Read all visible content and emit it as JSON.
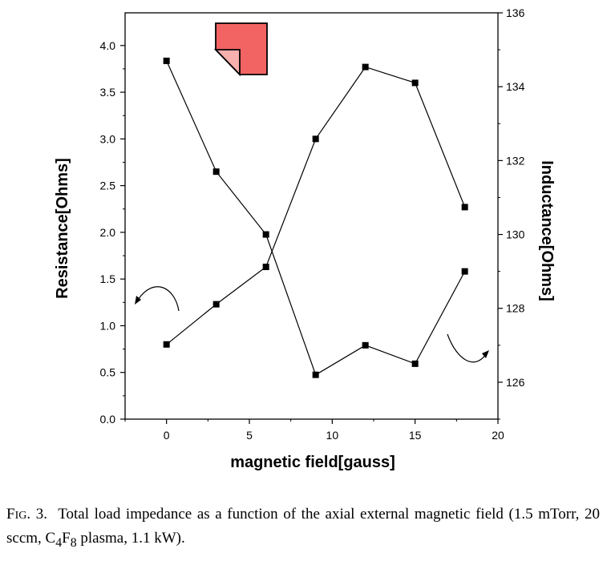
{
  "chart_data": {
    "type": "line",
    "x": [
      0,
      3,
      6,
      9,
      12,
      15,
      18
    ],
    "series": [
      {
        "axis": "left",
        "values": [
          0.8,
          1.23,
          1.63,
          3.0,
          3.77,
          3.6,
          2.27
        ]
      },
      {
        "axis": "right",
        "values": [
          134.7,
          131.7,
          130.0,
          126.2,
          127.0,
          126.5,
          129.0
        ]
      }
    ],
    "xlabel": "magnetic field[gauss]",
    "ylabel_left": "Resistance[Ohms]",
    "ylabel_right": "Inductance[Ohms]",
    "xlim": [
      -2.5,
      20
    ],
    "ylim_left": [
      0,
      4.35
    ],
    "ylim_right": [
      125,
      136
    ],
    "xticks": [
      "0",
      "5",
      "10",
      "15",
      "20"
    ],
    "yticks_left": [
      "0.0",
      "0.5",
      "1.0",
      "1.5",
      "2.0",
      "2.5",
      "3.0",
      "3.5",
      "4.0"
    ],
    "yticks_right": [
      "126",
      "128",
      "130",
      "132",
      "134",
      "136"
    ],
    "grid": false,
    "colors": {
      "line": "#000000",
      "marker": "#000000",
      "sticker_fill": "#f26464",
      "sticker_fold": "#f7b0ad"
    }
  },
  "caption": {
    "fig_prefix": "F",
    "fig_smallcaps": "IG",
    "fig_number": ". 3.",
    "text_a": "Total load impedance as a function of the axial external magnetic field (1.5 mTorr, 20 sccm, C",
    "sub_4": "4",
    "text_b": "F",
    "sub_8": "8",
    "text_c": " plasma, 1.1 kW)."
  },
  "icons": {
    "sticker": "folded-note-icon",
    "left_arrow": "curved-arrow-left-icon",
    "right_arrow": "curved-arrow-right-icon"
  }
}
